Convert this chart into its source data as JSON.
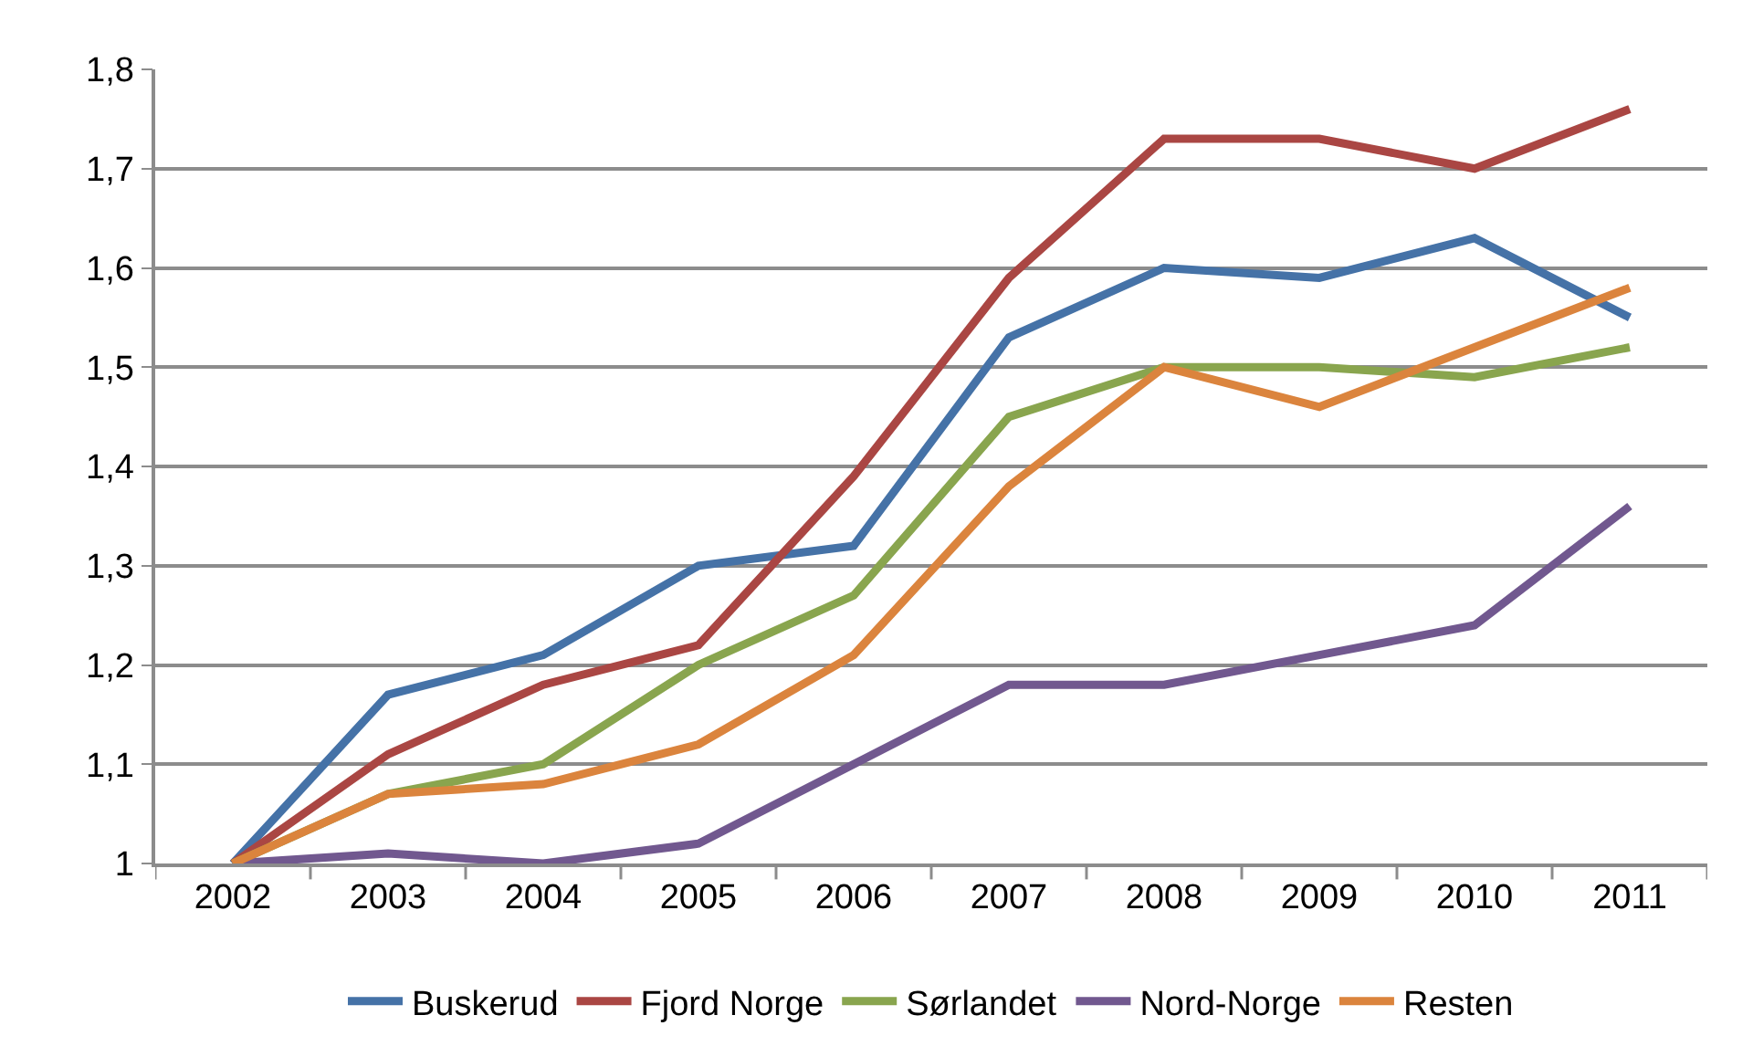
{
  "chart_data": {
    "type": "line",
    "categories": [
      "2002",
      "2003",
      "2004",
      "2005",
      "2006",
      "2007",
      "2008",
      "2009",
      "2010",
      "2011"
    ],
    "series": [
      {
        "name": "Buskerud",
        "color": "#4572a7",
        "values": [
          1.0,
          1.17,
          1.21,
          1.3,
          1.32,
          1.53,
          1.6,
          1.59,
          1.63,
          1.55
        ]
      },
      {
        "name": "Fjord Norge",
        "color": "#aa4643",
        "values": [
          1.0,
          1.11,
          1.18,
          1.22,
          1.39,
          1.59,
          1.73,
          1.73,
          1.7,
          1.76
        ]
      },
      {
        "name": "Sørlandet",
        "color": "#89a54e",
        "values": [
          1.0,
          1.07,
          1.1,
          1.2,
          1.27,
          1.45,
          1.5,
          1.5,
          1.49,
          1.52
        ]
      },
      {
        "name": "Nord-Norge",
        "color": "#71588f",
        "values": [
          1.0,
          1.01,
          1.0,
          1.02,
          1.1,
          1.18,
          1.18,
          1.21,
          1.24,
          1.36
        ]
      },
      {
        "name": "Resten",
        "color": "#db843d",
        "values": [
          1.0,
          1.07,
          1.08,
          1.12,
          1.21,
          1.38,
          1.5,
          1.46,
          1.52,
          1.58
        ]
      }
    ],
    "ylim": [
      1,
      1.8
    ],
    "yticks": [
      1,
      {
        "value": 1.1,
        "label": "1,1"
      },
      {
        "value": 1.2,
        "label": "1,2"
      },
      {
        "value": 1.3,
        "label": "1,3"
      },
      {
        "value": 1.4,
        "label": "1,4"
      },
      {
        "value": 1.5,
        "label": "1,5"
      },
      {
        "value": 1.6,
        "label": "1,6"
      },
      {
        "value": 1.7,
        "label": "1,7"
      },
      {
        "value": 1.8,
        "label": "1,8"
      }
    ],
    "grid": "y",
    "legend": "bottom",
    "marker": "none",
    "line_style": "solid"
  }
}
